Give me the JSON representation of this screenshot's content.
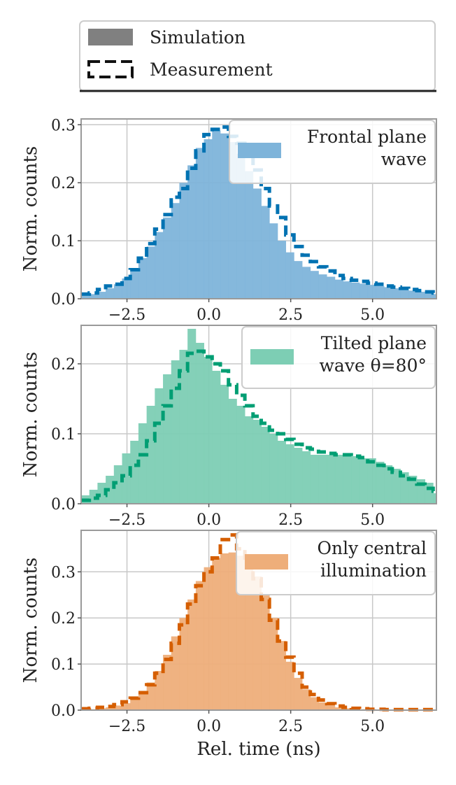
{
  "legend": {
    "items": [
      {
        "label": "Simulation",
        "style": "filled"
      },
      {
        "label": "Measurement",
        "style": "dashed"
      }
    ]
  },
  "colors": {
    "blue_fill": "#7eb4da",
    "blue_line": "#0072b2",
    "green_fill": "#7dceb4",
    "green_line": "#009e73",
    "orange_fill": "#eeae7a",
    "orange_line": "#d55e00",
    "legend_sim": "#808080",
    "legend_meas": "#111111",
    "grid": "#c8c8c8",
    "axis": "#9a9a9a"
  },
  "chart_data": [
    {
      "type": "bar",
      "legend_label": "Frontal plane wave",
      "legend_lines": [
        "Frontal plane",
        "wave"
      ],
      "ylabel": "Norm. counts",
      "xlabel": "",
      "xlim": [
        -3.9,
        6.95
      ],
      "ylim": [
        0,
        0.31
      ],
      "xticks": [
        -2.5,
        0.0,
        2.5,
        5.0
      ],
      "xtick_labels": [
        "−2.5",
        "0.0",
        "2.5",
        "5.0"
      ],
      "yticks": [
        0.0,
        0.1,
        0.2,
        0.3
      ],
      "ytick_labels": [
        "0.0",
        "0.1",
        "0.2",
        "0.3"
      ],
      "bin_start": -3.9,
      "bin_width": 0.25,
      "series": [
        {
          "name": "Simulation",
          "values": [
            0.005,
            0.008,
            0.012,
            0.018,
            0.025,
            0.035,
            0.05,
            0.07,
            0.09,
            0.115,
            0.14,
            0.165,
            0.2,
            0.23,
            0.26,
            0.275,
            0.29,
            0.285,
            0.27,
            0.25,
            0.22,
            0.19,
            0.16,
            0.13,
            0.1,
            0.08,
            0.065,
            0.055,
            0.048,
            0.042,
            0.038,
            0.033,
            0.03,
            0.028,
            0.026,
            0.024,
            0.022,
            0.02,
            0.018,
            0.016,
            0.014,
            0.012,
            0.01,
            0.008
          ]
        },
        {
          "name": "Measurement",
          "values": [
            0.008,
            0.01,
            0.016,
            0.022,
            0.025,
            0.035,
            0.05,
            0.07,
            0.095,
            0.12,
            0.145,
            0.175,
            0.19,
            0.225,
            0.255,
            0.283,
            0.292,
            0.296,
            0.28,
            0.268,
            0.255,
            0.222,
            0.19,
            0.16,
            0.14,
            0.11,
            0.09,
            0.075,
            0.064,
            0.055,
            0.048,
            0.04,
            0.035,
            0.032,
            0.03,
            0.027,
            0.025,
            0.022,
            0.02,
            0.018,
            0.016,
            0.014,
            0.012,
            0.01
          ]
        }
      ]
    },
    {
      "type": "bar",
      "legend_label": "Tilted plane wave θ=80°",
      "legend_lines": [
        "Tilted plane",
        "wave θ=80°"
      ],
      "ylabel": "Norm. counts",
      "xlabel": "",
      "xlim": [
        -3.9,
        6.95
      ],
      "ylim": [
        0,
        0.255
      ],
      "xticks": [
        -2.5,
        0.0,
        2.5,
        5.0
      ],
      "xtick_labels": [
        "−2.5",
        "0.0",
        "2.5",
        "5.0"
      ],
      "yticks": [
        0.0,
        0.1,
        0.2
      ],
      "ytick_labels": [
        "0.0",
        "0.1",
        "0.2"
      ],
      "bin_start": -3.9,
      "bin_width": 0.25,
      "series": [
        {
          "name": "Simulation",
          "values": [
            0.012,
            0.02,
            0.03,
            0.04,
            0.055,
            0.072,
            0.09,
            0.115,
            0.14,
            0.165,
            0.185,
            0.205,
            0.22,
            0.25,
            0.23,
            0.21,
            0.19,
            0.17,
            0.15,
            0.14,
            0.125,
            0.12,
            0.11,
            0.1,
            0.09,
            0.085,
            0.08,
            0.075,
            0.07,
            0.07,
            0.07,
            0.07,
            0.07,
            0.068,
            0.065,
            0.065,
            0.06,
            0.055,
            0.05,
            0.045,
            0.04,
            0.035,
            0.03,
            0.015
          ]
        },
        {
          "name": "Measurement",
          "values": [
            0.005,
            0.008,
            0.012,
            0.02,
            0.03,
            0.04,
            0.055,
            0.07,
            0.09,
            0.115,
            0.14,
            0.165,
            0.19,
            0.215,
            0.218,
            0.21,
            0.2,
            0.19,
            0.17,
            0.155,
            0.14,
            0.125,
            0.115,
            0.105,
            0.1,
            0.092,
            0.085,
            0.08,
            0.078,
            0.074,
            0.072,
            0.07,
            0.07,
            0.068,
            0.066,
            0.06,
            0.055,
            0.05,
            0.045,
            0.04,
            0.035,
            0.028,
            0.022,
            0.018
          ]
        }
      ]
    },
    {
      "type": "bar",
      "legend_label": "Only central illumination",
      "legend_lines": [
        "Only central",
        "illumination"
      ],
      "ylabel": "Norm. counts",
      "xlabel": "Rel. time (ns)",
      "xlim": [
        -3.9,
        6.95
      ],
      "ylim": [
        0,
        0.39
      ],
      "xticks": [
        -2.5,
        0.0,
        2.5,
        5.0
      ],
      "xtick_labels": [
        "−2.5",
        "0.0",
        "2.5",
        "5.0"
      ],
      "yticks": [
        0.0,
        0.1,
        0.2,
        0.3
      ],
      "ytick_labels": [
        "0.0",
        "0.1",
        "0.2",
        "0.3"
      ],
      "bin_start": -3.9,
      "bin_width": 0.25,
      "series": [
        {
          "name": "Simulation",
          "values": [
            0.001,
            0.002,
            0.004,
            0.006,
            0.01,
            0.015,
            0.025,
            0.04,
            0.06,
            0.085,
            0.12,
            0.16,
            0.2,
            0.24,
            0.28,
            0.31,
            0.33,
            0.34,
            0.342,
            0.335,
            0.32,
            0.29,
            0.25,
            0.2,
            0.15,
            0.105,
            0.07,
            0.045,
            0.028,
            0.017,
            0.01,
            0.006,
            0.004,
            0.003,
            0.002,
            0.002,
            0.001,
            0.001,
            0.001,
            0.001,
            0.001,
            0.001,
            0.001,
            0.001
          ]
        },
        {
          "name": "Measurement",
          "values": [
            0.003,
            0.004,
            0.006,
            0.008,
            0.012,
            0.018,
            0.026,
            0.038,
            0.055,
            0.08,
            0.11,
            0.145,
            0.185,
            0.23,
            0.27,
            0.3,
            0.33,
            0.37,
            0.38,
            0.35,
            0.32,
            0.285,
            0.24,
            0.195,
            0.15,
            0.115,
            0.08,
            0.05,
            0.034,
            0.022,
            0.014,
            0.009,
            0.006,
            0.004,
            0.003,
            0.002,
            0.002,
            0.001,
            0.001,
            0.001,
            0.001,
            0.001,
            0.001,
            0.001
          ]
        }
      ]
    }
  ]
}
